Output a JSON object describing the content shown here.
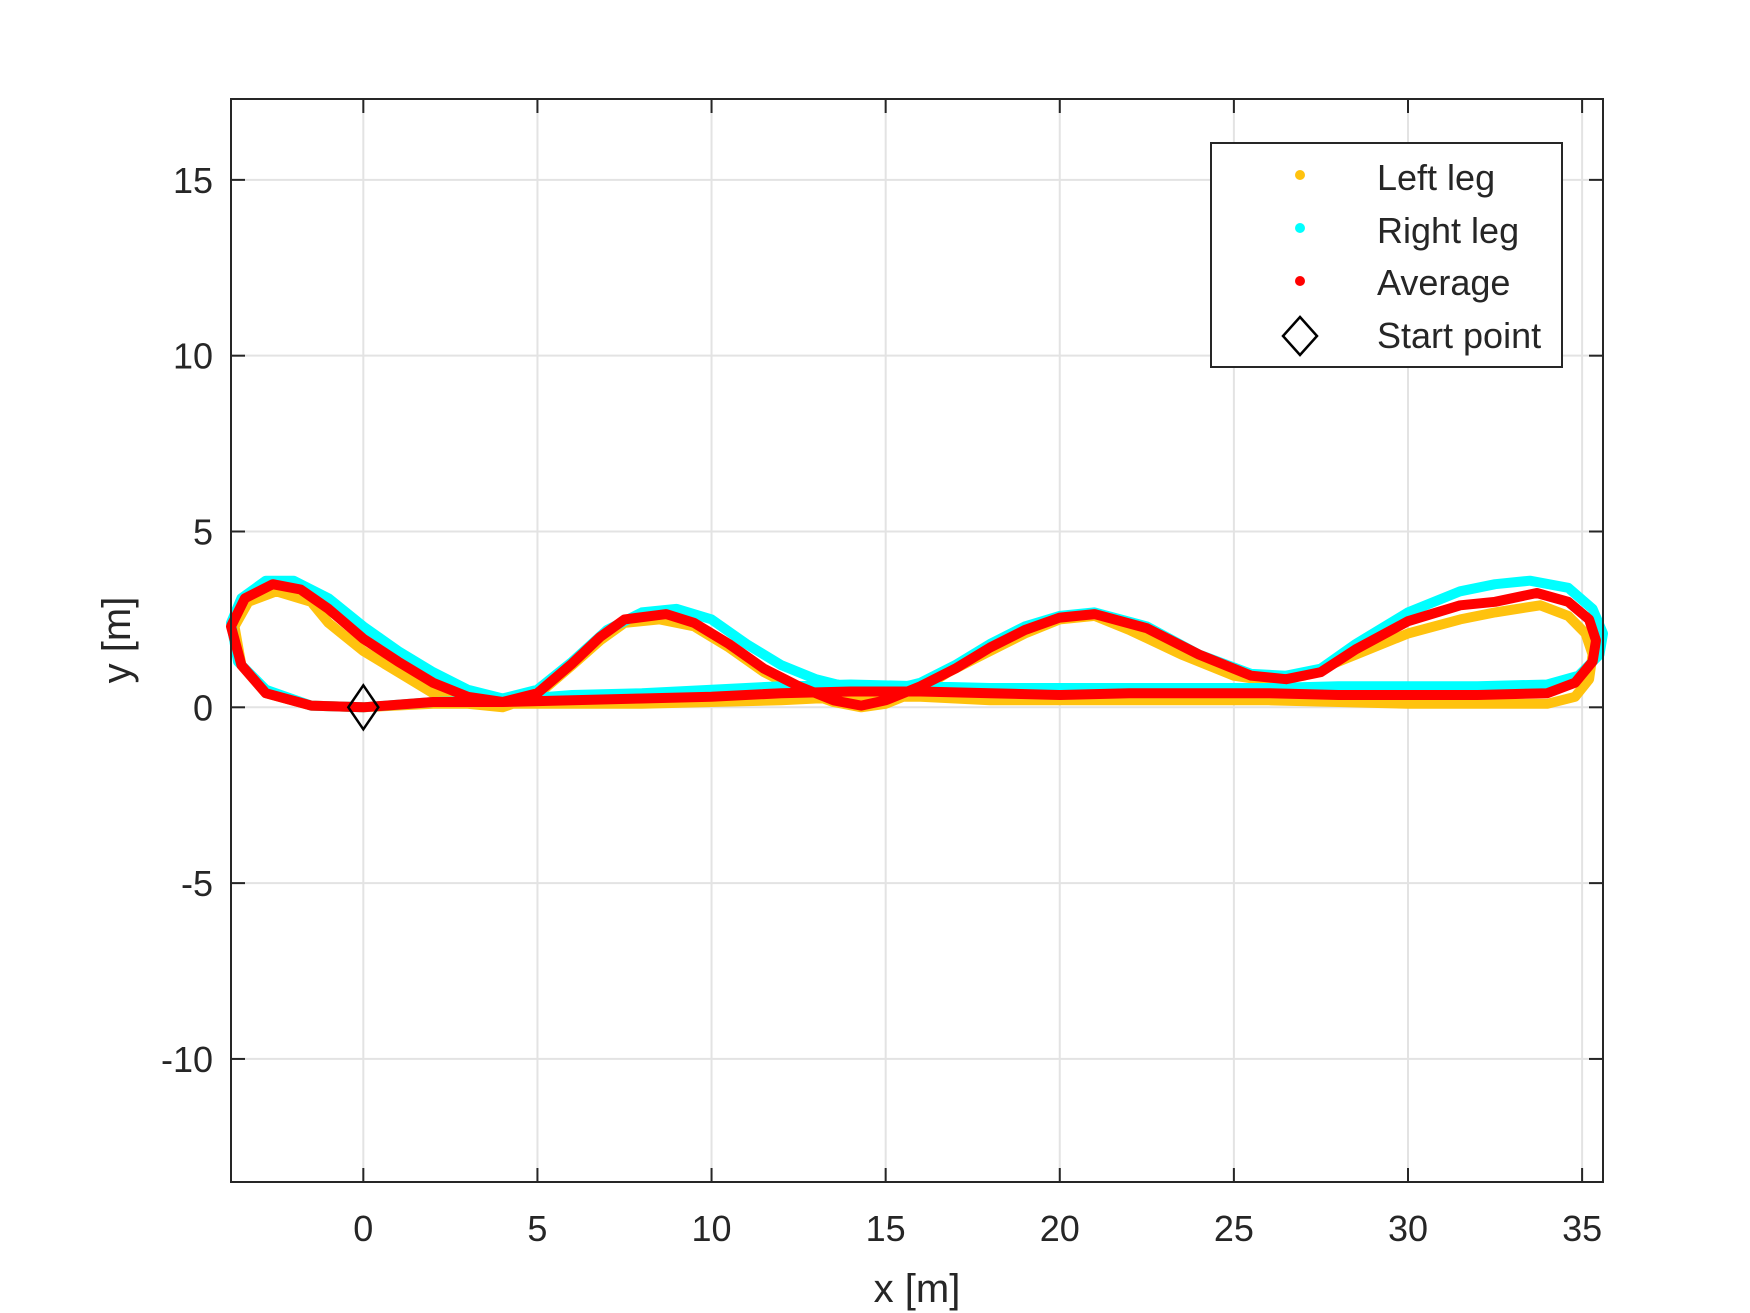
{
  "chart_data": {
    "type": "line",
    "title": "",
    "xlabel": "x [m]",
    "ylabel": "y [m]",
    "xlim": [
      -3.8,
      35.6
    ],
    "ylim": [
      -13.5,
      17.3
    ],
    "xticks": [
      0,
      5,
      10,
      15,
      20,
      25,
      30,
      35
    ],
    "yticks": [
      -10,
      -5,
      0,
      5,
      10,
      15
    ],
    "xtick_labels": [
      "0",
      "5",
      "10",
      "15",
      "20",
      "25",
      "30",
      "35"
    ],
    "ytick_labels": [
      "-10",
      "-5",
      "0",
      "5",
      "10",
      "15"
    ],
    "grid": true,
    "legend_position": "top-right",
    "series": [
      {
        "name": "Left leg",
        "color": "#FFC20E",
        "marker": "dot",
        "points": [
          [
            0,
            0
          ],
          [
            2,
            0.1
          ],
          [
            4,
            0.1
          ],
          [
            6,
            0.1
          ],
          [
            8,
            0.1
          ],
          [
            10,
            0.15
          ],
          [
            12,
            0.2
          ],
          [
            14,
            0.3
          ],
          [
            16,
            0.3
          ],
          [
            18,
            0.2
          ],
          [
            20,
            0.2
          ],
          [
            22,
            0.2
          ],
          [
            24,
            0.2
          ],
          [
            26,
            0.2
          ],
          [
            28,
            0.15
          ],
          [
            30,
            0.1
          ],
          [
            32,
            0.1
          ],
          [
            34,
            0.1
          ],
          [
            34.8,
            0.3
          ],
          [
            35.2,
            0.8
          ],
          [
            35.3,
            1.5
          ],
          [
            35.1,
            2.1
          ],
          [
            34.6,
            2.6
          ],
          [
            33.8,
            2.9
          ],
          [
            32.5,
            2.7
          ],
          [
            31.5,
            2.5
          ],
          [
            30,
            2.1
          ],
          [
            28.5,
            1.5
          ],
          [
            27,
            0.9
          ],
          [
            26,
            0.75
          ],
          [
            25,
            0.9
          ],
          [
            23.5,
            1.5
          ],
          [
            22,
            2.2
          ],
          [
            21,
            2.6
          ],
          [
            20,
            2.5
          ],
          [
            19,
            2.1
          ],
          [
            18,
            1.6
          ],
          [
            16.8,
            1.0
          ],
          [
            16,
            0.5
          ],
          [
            15,
            0.1
          ],
          [
            14.3,
            0
          ],
          [
            13.5,
            0.15
          ],
          [
            12.5,
            0.5
          ],
          [
            11.5,
            1.0
          ],
          [
            10.5,
            1.7
          ],
          [
            9.5,
            2.3
          ],
          [
            8.5,
            2.5
          ],
          [
            7.5,
            2.4
          ],
          [
            6.8,
            1.9
          ],
          [
            6,
            1.2
          ],
          [
            5,
            0.35
          ],
          [
            4,
            0
          ],
          [
            3,
            0.1
          ],
          [
            2,
            0.4
          ],
          [
            1,
            1.0
          ],
          [
            0,
            1.6
          ],
          [
            -1,
            2.4
          ],
          [
            -1.5,
            3.0
          ],
          [
            -2.5,
            3.3
          ],
          [
            -3.3,
            3.0
          ],
          [
            -3.7,
            2.3
          ],
          [
            -3.5,
            1.2
          ],
          [
            -2.8,
            0.4
          ],
          [
            -1.5,
            0.05
          ],
          [
            0,
            0
          ]
        ]
      },
      {
        "name": "Right leg",
        "color": "#00FFFF",
        "marker": "dot",
        "points": [
          [
            0,
            0
          ],
          [
            2,
            0.15
          ],
          [
            4,
            0.2
          ],
          [
            6,
            0.35
          ],
          [
            8,
            0.4
          ],
          [
            10,
            0.5
          ],
          [
            12,
            0.6
          ],
          [
            14,
            0.65
          ],
          [
            16,
            0.6
          ],
          [
            18,
            0.55
          ],
          [
            20,
            0.55
          ],
          [
            22,
            0.55
          ],
          [
            24,
            0.55
          ],
          [
            26,
            0.55
          ],
          [
            28,
            0.6
          ],
          [
            30,
            0.6
          ],
          [
            32,
            0.6
          ],
          [
            34,
            0.65
          ],
          [
            34.9,
            0.9
          ],
          [
            35.5,
            1.5
          ],
          [
            35.6,
            2.1
          ],
          [
            35.3,
            2.8
          ],
          [
            34.6,
            3.4
          ],
          [
            33.5,
            3.6
          ],
          [
            32.5,
            3.5
          ],
          [
            31.5,
            3.3
          ],
          [
            30,
            2.7
          ],
          [
            28.5,
            1.8
          ],
          [
            27.5,
            1.1
          ],
          [
            26.5,
            0.9
          ],
          [
            25.5,
            0.95
          ],
          [
            24,
            1.5
          ],
          [
            22.5,
            2.3
          ],
          [
            21,
            2.7
          ],
          [
            20,
            2.6
          ],
          [
            19,
            2.3
          ],
          [
            18,
            1.8
          ],
          [
            17,
            1.2
          ],
          [
            16,
            0.7
          ],
          [
            15,
            0.45
          ],
          [
            14,
            0.55
          ],
          [
            13,
            0.8
          ],
          [
            12,
            1.2
          ],
          [
            11,
            1.8
          ],
          [
            10,
            2.5
          ],
          [
            9,
            2.8
          ],
          [
            8,
            2.7
          ],
          [
            7,
            2.2
          ],
          [
            6,
            1.3
          ],
          [
            5,
            0.5
          ],
          [
            4,
            0.25
          ],
          [
            3,
            0.5
          ],
          [
            2,
            1.0
          ],
          [
            1,
            1.6
          ],
          [
            0,
            2.3
          ],
          [
            -1,
            3.1
          ],
          [
            -2,
            3.6
          ],
          [
            -2.8,
            3.6
          ],
          [
            -3.5,
            3.1
          ],
          [
            -3.8,
            2.4
          ],
          [
            -3.6,
            1.3
          ],
          [
            -2.8,
            0.5
          ],
          [
            -1.5,
            0.05
          ],
          [
            0,
            0
          ]
        ]
      },
      {
        "name": "Average",
        "color": "#FF0000",
        "marker": "dot",
        "points": [
          [
            0,
            0
          ],
          [
            2,
            0.15
          ],
          [
            4,
            0.15
          ],
          [
            6,
            0.2
          ],
          [
            8,
            0.25
          ],
          [
            10,
            0.3
          ],
          [
            12,
            0.4
          ],
          [
            14,
            0.45
          ],
          [
            16,
            0.45
          ],
          [
            18,
            0.4
          ],
          [
            20,
            0.35
          ],
          [
            22,
            0.4
          ],
          [
            24,
            0.4
          ],
          [
            26,
            0.4
          ],
          [
            28,
            0.35
          ],
          [
            30,
            0.35
          ],
          [
            32,
            0.35
          ],
          [
            34,
            0.4
          ],
          [
            34.8,
            0.7
          ],
          [
            35.3,
            1.3
          ],
          [
            35.4,
            1.9
          ],
          [
            35.2,
            2.5
          ],
          [
            34.6,
            3.0
          ],
          [
            33.7,
            3.25
          ],
          [
            32.5,
            3.0
          ],
          [
            31.5,
            2.9
          ],
          [
            30,
            2.45
          ],
          [
            28.5,
            1.65
          ],
          [
            27.5,
            1.0
          ],
          [
            26.5,
            0.8
          ],
          [
            25.5,
            0.9
          ],
          [
            24,
            1.5
          ],
          [
            22.5,
            2.25
          ],
          [
            21,
            2.65
          ],
          [
            20,
            2.55
          ],
          [
            19,
            2.2
          ],
          [
            18,
            1.7
          ],
          [
            17,
            1.1
          ],
          [
            16,
            0.6
          ],
          [
            15,
            0.2
          ],
          [
            14.3,
            0.05
          ],
          [
            13.5,
            0.2
          ],
          [
            12.5,
            0.6
          ],
          [
            11.5,
            1.1
          ],
          [
            10.5,
            1.8
          ],
          [
            9.5,
            2.4
          ],
          [
            8.7,
            2.65
          ],
          [
            7.5,
            2.5
          ],
          [
            6.8,
            2.0
          ],
          [
            6,
            1.25
          ],
          [
            5,
            0.4
          ],
          [
            4,
            0.15
          ],
          [
            3,
            0.3
          ],
          [
            2,
            0.7
          ],
          [
            1,
            1.3
          ],
          [
            0,
            1.95
          ],
          [
            -1,
            2.8
          ],
          [
            -1.8,
            3.35
          ],
          [
            -2.6,
            3.5
          ],
          [
            -3.4,
            3.1
          ],
          [
            -3.8,
            2.3
          ],
          [
            -3.5,
            1.2
          ],
          [
            -2.8,
            0.4
          ],
          [
            -1.5,
            0.05
          ],
          [
            0,
            0
          ]
        ]
      }
    ],
    "start_point": {
      "name": "Start point",
      "x": 0,
      "y": 0,
      "marker": "diamond",
      "color": "#000000"
    }
  }
}
